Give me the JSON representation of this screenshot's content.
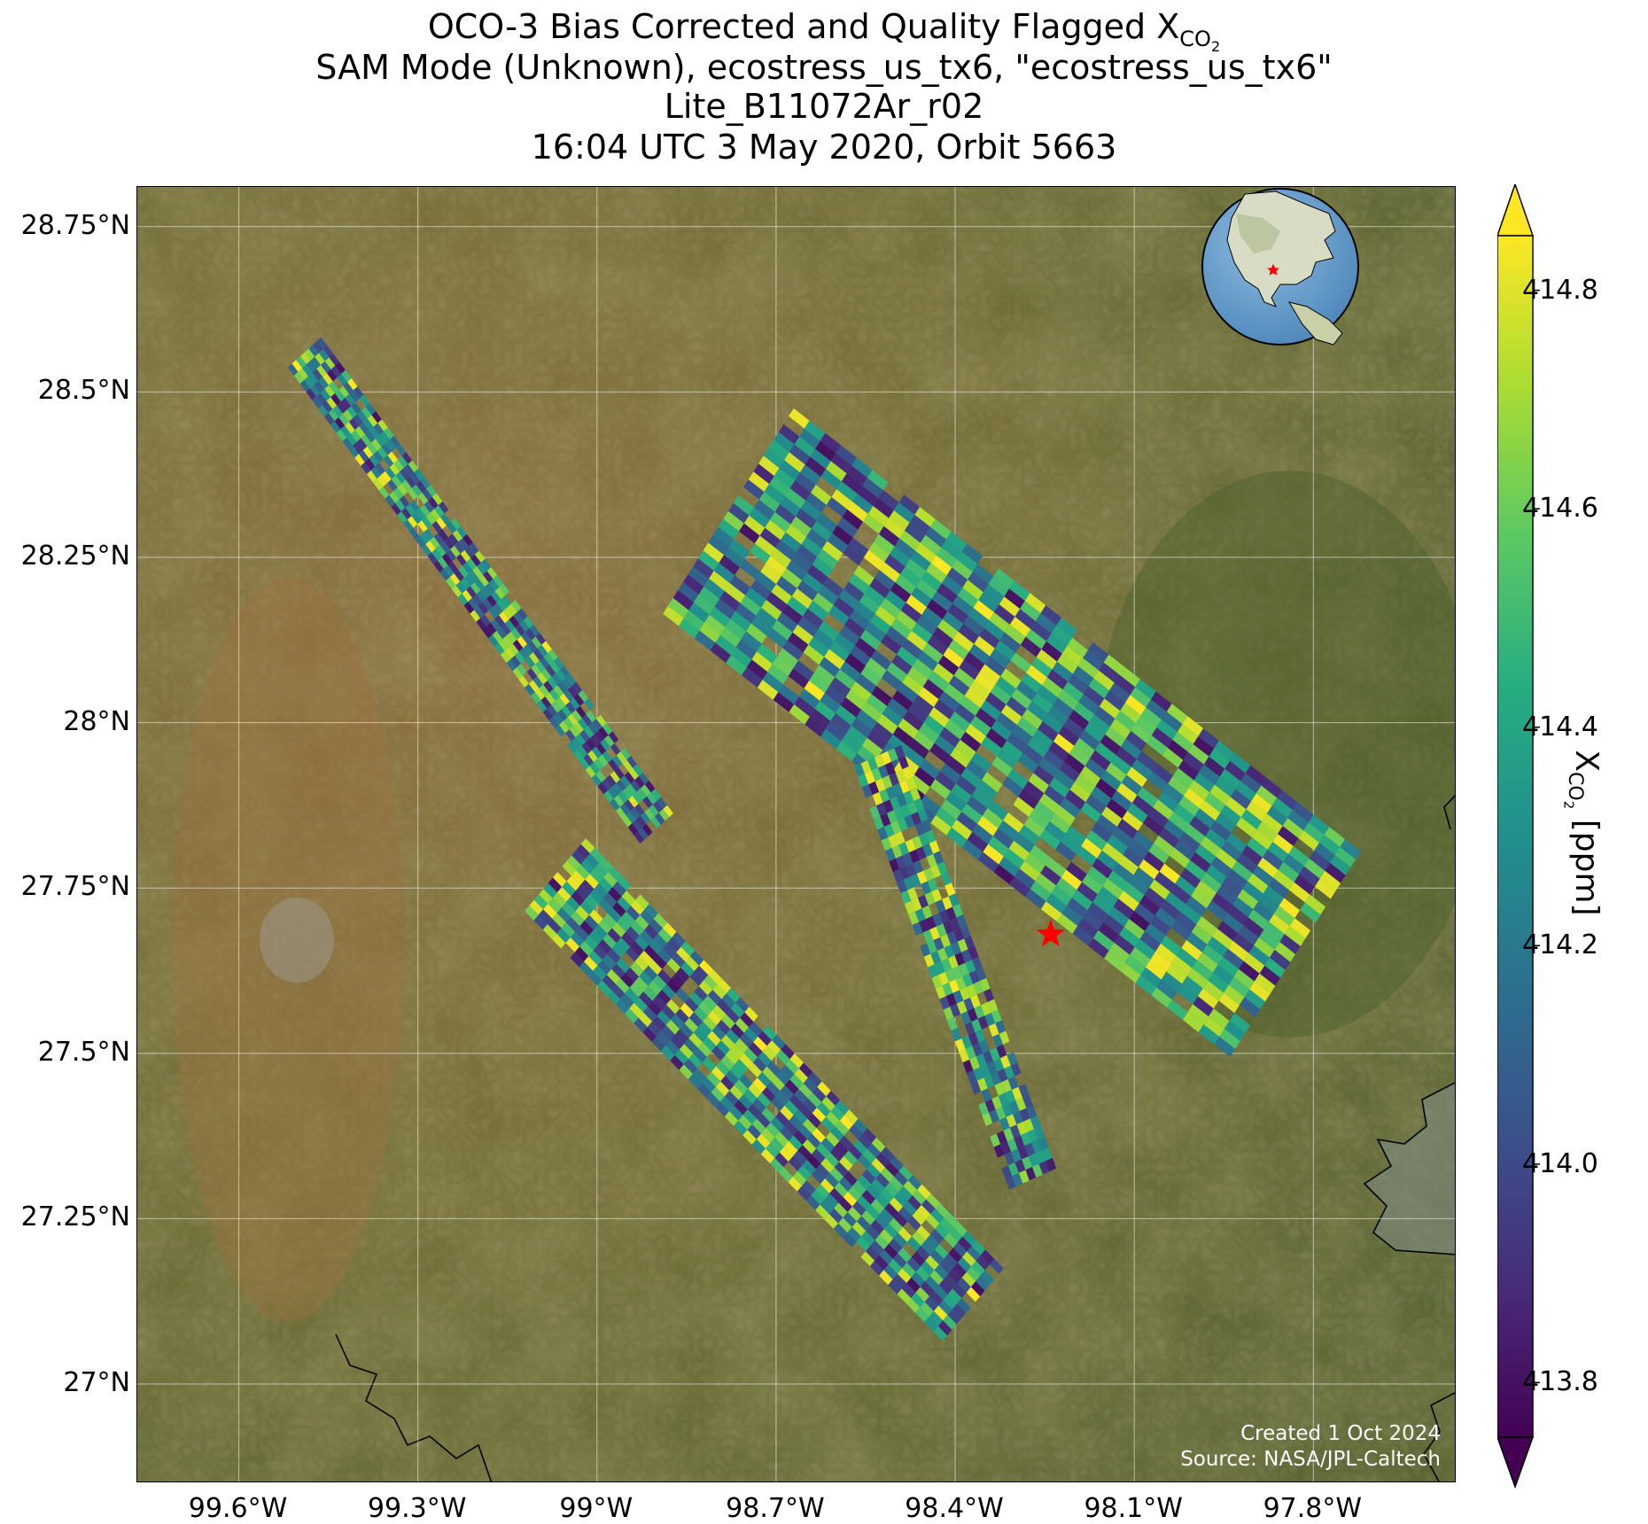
{
  "title": {
    "line1_text": "OCO-3 Bias Corrected and Quality Flagged X",
    "line1_sub": "CO",
    "line1_subsub": "2",
    "line2": "SAM Mode (Unknown), ecostress_us_tx6, \"ecostress_us_tx6\"",
    "line3": "Lite_B11072Ar_r02",
    "line4": "16:04 UTC 3 May 2020, Orbit 5663"
  },
  "map": {
    "lon_range": [
      -99.77,
      -97.56
    ],
    "lat_range": [
      26.85,
      28.81
    ],
    "gridlines": true,
    "basemap": "satellite imagery",
    "target_marker": {
      "lon": -98.24,
      "lat": 27.68,
      "symbol": "red-star"
    },
    "inset": {
      "type": "orthographic globe",
      "centered_on": "North America",
      "marker": "red-star"
    },
    "lon_ticks": [
      {
        "value": -99.6,
        "label": "99.6°W"
      },
      {
        "value": -99.3,
        "label": "99.3°W"
      },
      {
        "value": -99.0,
        "label": "99°W"
      },
      {
        "value": -98.7,
        "label": "98.7°W"
      },
      {
        "value": -98.4,
        "label": "98.4°W"
      },
      {
        "value": -98.1,
        "label": "98.1°W"
      },
      {
        "value": -97.8,
        "label": "97.8°W"
      }
    ],
    "lat_ticks": [
      {
        "value": 28.75,
        "label": "28.75°N"
      },
      {
        "value": 28.5,
        "label": "28.5°N"
      },
      {
        "value": 28.25,
        "label": "28.25°N"
      },
      {
        "value": 28.0,
        "label": "28°N"
      },
      {
        "value": 27.75,
        "label": "27.75°N"
      },
      {
        "value": 27.5,
        "label": "27.5°N"
      },
      {
        "value": 27.25,
        "label": "27.25°N"
      },
      {
        "value": 27.0,
        "label": "27°N"
      }
    ]
  },
  "colorbar": {
    "label_prefix": "X",
    "label_sub": "CO",
    "label_subsub": "2",
    "label_suffix": " [ppm]",
    "colormap": "viridis",
    "vmin": 413.75,
    "vmax": 414.85,
    "ticks": [
      {
        "value": 413.8,
        "label": "413.8"
      },
      {
        "value": 414.0,
        "label": "414.0"
      },
      {
        "value": 414.2,
        "label": "414.2"
      },
      {
        "value": 414.4,
        "label": "414.4"
      },
      {
        "value": 414.6,
        "label": "414.6"
      },
      {
        "value": 414.8,
        "label": "414.8"
      }
    ],
    "extend": "both",
    "stops": [
      "#440154",
      "#472c7a",
      "#3b518b",
      "#2c718e",
      "#21908d",
      "#27ad81",
      "#5cc863",
      "#aadc32",
      "#fde725"
    ]
  },
  "credit": {
    "line1": "Created 1 Oct 2024",
    "line2": "Source: NASA/JPL-Caltech"
  },
  "chart_data": {
    "type": "heatmap",
    "title": "OCO-3 Bias Corrected and Quality Flagged XCO2 — SAM Mode (Unknown), ecostress_us_tx6, \"ecostress_us_tx6\" — Lite_B11072Ar_r02 — 16:04 UTC 3 May 2020, Orbit 5663",
    "xlabel": "",
    "ylabel": "",
    "colorbar_label": "XCO2 [ppm]",
    "xlim": [
      -99.77,
      -97.56
    ],
    "ylim": [
      26.85,
      28.81
    ],
    "zlim": [
      413.75,
      414.85
    ],
    "grid": true,
    "swaths": [
      {
        "start": [
          -99.49,
          28.56
        ],
        "end": [
          -98.9,
          27.84
        ],
        "value_range": [
          413.8,
          414.85
        ]
      },
      {
        "start": [
          -98.78,
          28.32
        ],
        "end": [
          -97.83,
          27.65
        ],
        "value_range": [
          413.8,
          414.85
        ]
      },
      {
        "start": [
          -99.07,
          27.77
        ],
        "end": [
          -98.37,
          27.12
        ],
        "value_range": [
          413.8,
          414.85
        ]
      },
      {
        "start": [
          -98.53,
          27.95
        ],
        "end": [
          -98.27,
          27.31
        ],
        "value_range": [
          413.8,
          414.85
        ]
      }
    ]
  }
}
